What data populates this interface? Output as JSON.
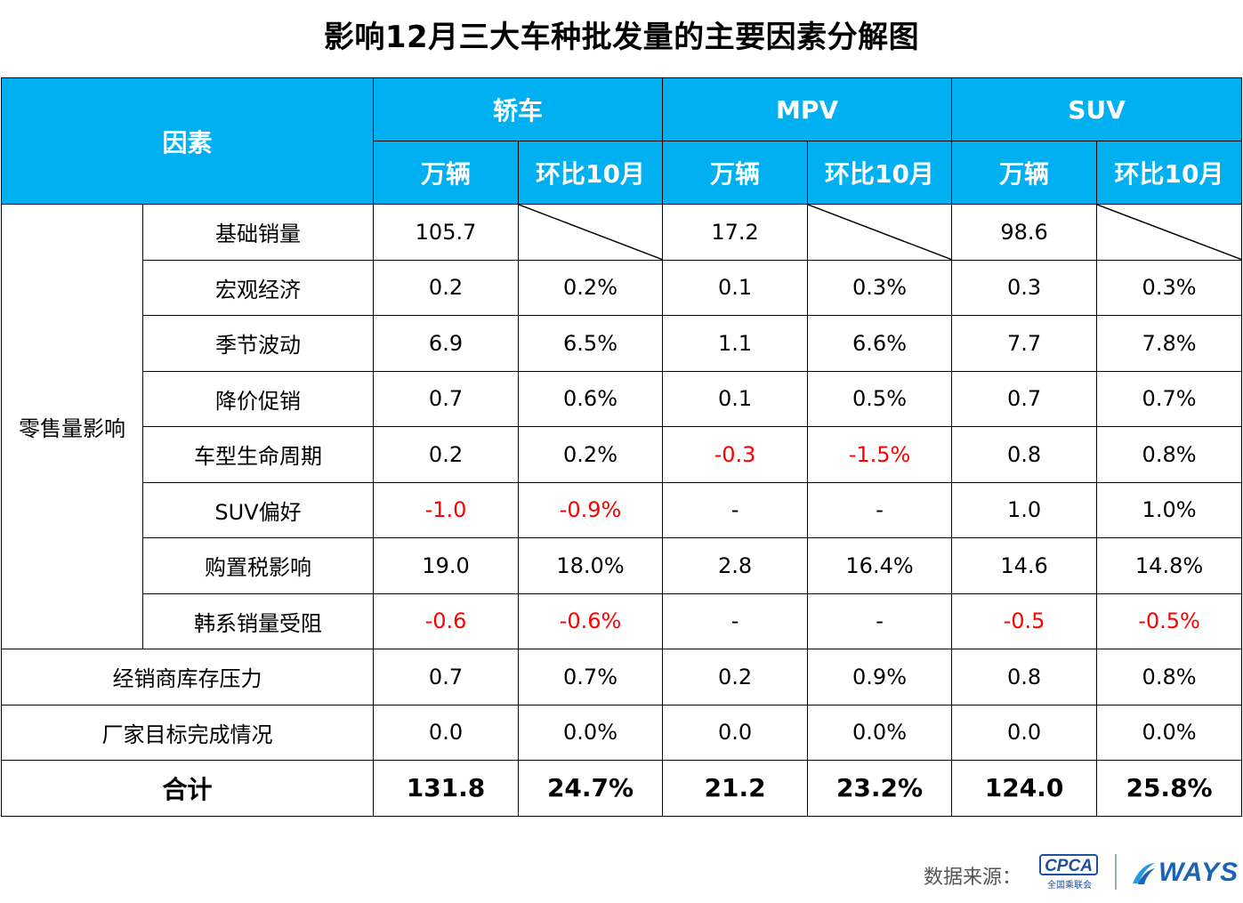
{
  "title": "影响12月三大车种批发量的主要因素分解图",
  "colors": {
    "header_bg": "#00b0f0",
    "header_text": "#ffffff",
    "negative": "#ff0000"
  },
  "chart_data": {
    "type": "table",
    "title": "影响12月三大车种批发量的主要因素分解图",
    "header": {
      "factor": "因素",
      "groups": [
        "轿车",
        "MPV",
        "SUV"
      ],
      "subcolumns": [
        "万辆",
        "环比10月"
      ]
    },
    "group_label": "零售量影响",
    "rows": [
      {
        "factor": "基础销量",
        "values": [
          "105.7",
          "",
          "17.2",
          "",
          "98.6",
          ""
        ],
        "diagonal": [
          false,
          true,
          false,
          true,
          false,
          true
        ]
      },
      {
        "factor": "宏观经济",
        "values": [
          "0.2",
          "0.2%",
          "0.1",
          "0.3%",
          "0.3",
          "0.3%"
        ]
      },
      {
        "factor": "季节波动",
        "values": [
          "6.9",
          "6.5%",
          "1.1",
          "6.6%",
          "7.7",
          "7.8%"
        ]
      },
      {
        "factor": "降价促销",
        "values": [
          "0.7",
          "0.6%",
          "0.1",
          "0.5%",
          "0.7",
          "0.7%"
        ]
      },
      {
        "factor": "车型生命周期",
        "values": [
          "0.2",
          "0.2%",
          "-0.3",
          "-1.5%",
          "0.8",
          "0.8%"
        ]
      },
      {
        "factor": "SUV偏好",
        "values": [
          "-1.0",
          "-0.9%",
          "-",
          "-",
          "1.0",
          "1.0%"
        ]
      },
      {
        "factor": "购置税影响",
        "values": [
          "19.0",
          "18.0%",
          "2.8",
          "16.4%",
          "14.6",
          "14.8%"
        ]
      },
      {
        "factor": "韩系销量受阻",
        "values": [
          "-0.6",
          "-0.6%",
          "-",
          "-",
          "-0.5",
          "-0.5%"
        ]
      }
    ],
    "other_rows": [
      {
        "factor": "经销商库存压力",
        "values": [
          "0.7",
          "0.7%",
          "0.2",
          "0.9%",
          "0.8",
          "0.8%"
        ]
      },
      {
        "factor": "厂家目标完成情况",
        "values": [
          "0.0",
          "0.0%",
          "0.0",
          "0.0%",
          "0.0",
          "0.0%"
        ]
      }
    ],
    "total": {
      "factor": "合计",
      "values": [
        "131.8",
        "24.7%",
        "21.2",
        "23.2%",
        "124.0",
        "25.8%"
      ]
    }
  },
  "footer": {
    "source_label": "数据来源：",
    "logo_cpca": "CPCA",
    "logo_cpca_sub": "全国乘联会",
    "logo_ways": "WAYS"
  }
}
